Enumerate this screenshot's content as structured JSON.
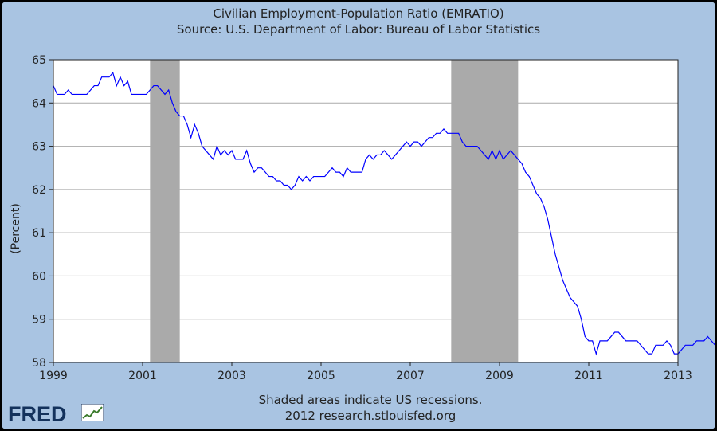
{
  "chart_data": {
    "type": "line",
    "title": "Civilian Employment-Population Ratio (EMRATIO)",
    "subtitle": "Source: U.S. Department of Labor: Bureau of Labor Statistics",
    "xlabel": "",
    "ylabel": "(Percent)",
    "xlim": [
      1999,
      2013
    ],
    "ylim": [
      58,
      65
    ],
    "x_ticks": [
      "1999",
      "2001",
      "2003",
      "2005",
      "2007",
      "2009",
      "2011",
      "2013"
    ],
    "y_ticks": [
      "58",
      "59",
      "60",
      "61",
      "62",
      "63",
      "64",
      "65"
    ],
    "grid": "horizontal",
    "line_color": "#0000ff",
    "recession_color": "#aaaaaa",
    "recessions": [
      {
        "start": "2001-03",
        "end": "2001-11"
      },
      {
        "start": "2007-12",
        "end": "2009-06"
      }
    ],
    "series": [
      {
        "start": "1999-01",
        "frequency": "monthly",
        "values": [
          64.4,
          64.2,
          64.2,
          64.2,
          64.3,
          64.2,
          64.2,
          64.2,
          64.2,
          64.2,
          64.3,
          64.4,
          64.4,
          64.6,
          64.6,
          64.6,
          64.7,
          64.4,
          64.6,
          64.4,
          64.5,
          64.2,
          64.2,
          64.2,
          64.2,
          64.2,
          64.3,
          64.4,
          64.4,
          64.3,
          64.2,
          64.3,
          64.0,
          63.8,
          63.7,
          63.7,
          63.5,
          63.2,
          63.5,
          63.3,
          63.0,
          62.9,
          62.8,
          62.7,
          63.0,
          62.8,
          62.9,
          62.8,
          62.9,
          62.7,
          62.7,
          62.7,
          62.9,
          62.6,
          62.4,
          62.5,
          62.5,
          62.4,
          62.3,
          62.3,
          62.2,
          62.2,
          62.1,
          62.1,
          62.0,
          62.1,
          62.3,
          62.2,
          62.3,
          62.2,
          62.3,
          62.3,
          62.3,
          62.3,
          62.4,
          62.5,
          62.4,
          62.4,
          62.3,
          62.5,
          62.4,
          62.4,
          62.4,
          62.4,
          62.7,
          62.8,
          62.7,
          62.8,
          62.8,
          62.9,
          62.8,
          62.7,
          62.8,
          62.9,
          63.0,
          63.1,
          63.0,
          63.1,
          63.1,
          63.0,
          63.1,
          63.2,
          63.2,
          63.3,
          63.3,
          63.4,
          63.3,
          63.3,
          63.3,
          63.3,
          63.1,
          63.0,
          63.0,
          63.0,
          63.0,
          62.9,
          62.8,
          62.7,
          62.9,
          62.7,
          62.9,
          62.7,
          62.8,
          62.9,
          62.8,
          62.7,
          62.6,
          62.4,
          62.3,
          62.1,
          61.9,
          61.8,
          61.6,
          61.3,
          60.9,
          60.5,
          60.2,
          59.9,
          59.7,
          59.5,
          59.4,
          59.3,
          59.0,
          58.6,
          58.5,
          58.5,
          58.2,
          58.5,
          58.5,
          58.5,
          58.6,
          58.7,
          58.7,
          58.6,
          58.5,
          58.5,
          58.5,
          58.5,
          58.4,
          58.3,
          58.2,
          58.2,
          58.4,
          58.4,
          58.4,
          58.5,
          58.4,
          58.2,
          58.2,
          58.3,
          58.4,
          58.4,
          58.4,
          58.5,
          58.5,
          58.5,
          58.6,
          58.5,
          58.4,
          58.6,
          58.6
        ]
      }
    ]
  },
  "footer": {
    "note": "Shaded areas indicate US recessions.",
    "credit": "2012 research.stlouisfed.org",
    "logo_text": "FRED"
  }
}
